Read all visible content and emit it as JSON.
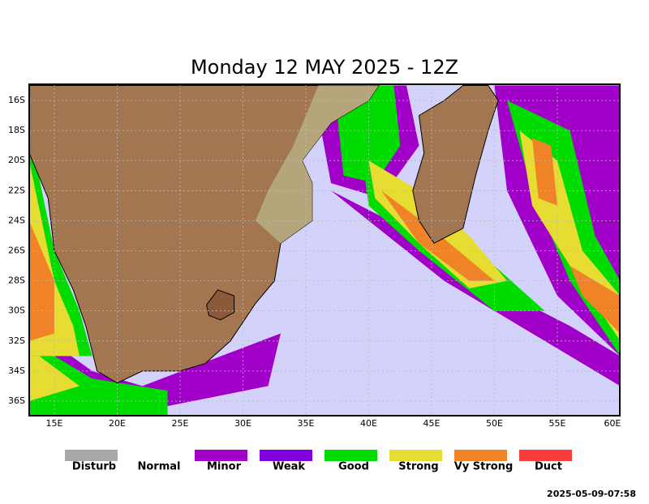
{
  "title": "Monday 12 MAY 2025 - 12Z",
  "lat_labels": [
    "16S",
    "18S",
    "20S",
    "22S",
    "24S",
    "26S",
    "28S",
    "30S",
    "32S",
    "34S",
    "36S"
  ],
  "lon_labels": [
    "15E",
    "20E",
    "25E",
    "30E",
    "35E",
    "40E",
    "45E",
    "50E",
    "55E",
    "60E"
  ],
  "legend": [
    {
      "label": "Disturb",
      "color": "#a8a8a8"
    },
    {
      "label": "Normal"
    },
    {
      "label": "Minor",
      "color": "#a000c8"
    },
    {
      "label": "Weak",
      "color": "#8200dc"
    },
    {
      "label": "Good",
      "color": "#00dc00"
    },
    {
      "label": "Strong",
      "color": "#e6dc32"
    },
    {
      "label": "Vy Strong",
      "color": "#f08228"
    },
    {
      "label": "Duct",
      "color": "#fa3c3c"
    }
  ],
  "timestamp": "2025-05-09-07:58"
}
